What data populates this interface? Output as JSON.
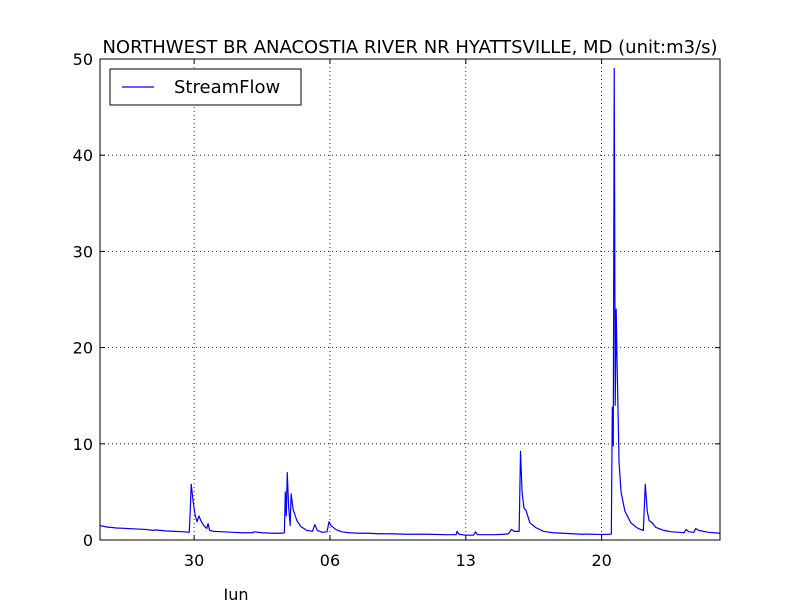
{
  "chart_data": {
    "type": "line",
    "title": "NORTHWEST BR ANACOSTIA RIVER NR HYATTSVILLE, MD (unit:m3/s)",
    "xlabel": "",
    "ylabel": "",
    "x_month_label": "Jun",
    "x_ticks": [
      {
        "day": 30,
        "label": "30"
      },
      {
        "day": 37,
        "label": "06"
      },
      {
        "day": 44,
        "label": "13"
      },
      {
        "day": 51,
        "label": "20"
      }
    ],
    "xlim": [
      25.15,
      57.1
    ],
    "ylim": [
      0,
      50
    ],
    "y_ticks": [
      0,
      10,
      20,
      30,
      40,
      50
    ],
    "grid": true,
    "legend": {
      "position": "top-left",
      "entries": [
        "StreamFlow"
      ]
    },
    "series": [
      {
        "name": "StreamFlow",
        "color": "#0000ff",
        "points": [
          [
            25.15,
            1.5
          ],
          [
            25.5,
            1.35
          ],
          [
            26.0,
            1.25
          ],
          [
            26.5,
            1.2
          ],
          [
            27.0,
            1.15
          ],
          [
            27.5,
            1.1
          ],
          [
            27.9,
            1.0
          ],
          [
            28.0,
            1.05
          ],
          [
            28.5,
            0.95
          ],
          [
            29.0,
            0.9
          ],
          [
            29.5,
            0.85
          ],
          [
            29.75,
            0.8
          ],
          [
            29.8,
            3.0
          ],
          [
            29.85,
            5.8
          ],
          [
            29.95,
            4.0
          ],
          [
            30.05,
            2.6
          ],
          [
            30.15,
            1.9
          ],
          [
            30.25,
            2.5
          ],
          [
            30.35,
            2.0
          ],
          [
            30.5,
            1.5
          ],
          [
            30.65,
            1.2
          ],
          [
            30.72,
            1.7
          ],
          [
            30.8,
            1.0
          ],
          [
            31.0,
            0.9
          ],
          [
            31.5,
            0.85
          ],
          [
            32.0,
            0.8
          ],
          [
            32.5,
            0.75
          ],
          [
            33.0,
            0.75
          ],
          [
            33.1,
            0.85
          ],
          [
            33.5,
            0.75
          ],
          [
            34.0,
            0.7
          ],
          [
            34.5,
            0.7
          ],
          [
            34.65,
            0.75
          ],
          [
            34.7,
            5.0
          ],
          [
            34.75,
            2.5
          ],
          [
            34.8,
            7.0
          ],
          [
            34.87,
            3.5
          ],
          [
            34.95,
            1.5
          ],
          [
            35.0,
            4.8
          ],
          [
            35.1,
            3.2
          ],
          [
            35.3,
            2.0
          ],
          [
            35.5,
            1.4
          ],
          [
            35.8,
            1.0
          ],
          [
            36.1,
            0.9
          ],
          [
            36.22,
            1.6
          ],
          [
            36.35,
            1.0
          ],
          [
            36.6,
            0.8
          ],
          [
            36.85,
            0.85
          ],
          [
            36.95,
            1.9
          ],
          [
            37.05,
            1.5
          ],
          [
            37.3,
            1.1
          ],
          [
            37.6,
            0.85
          ],
          [
            38.0,
            0.75
          ],
          [
            38.5,
            0.7
          ],
          [
            39.0,
            0.7
          ],
          [
            39.5,
            0.65
          ],
          [
            40.0,
            0.65
          ],
          [
            41.0,
            0.6
          ],
          [
            42.0,
            0.6
          ],
          [
            43.0,
            0.55
          ],
          [
            43.5,
            0.55
          ],
          [
            43.55,
            0.9
          ],
          [
            43.65,
            0.6
          ],
          [
            44.0,
            0.5
          ],
          [
            44.4,
            0.5
          ],
          [
            44.5,
            0.85
          ],
          [
            44.6,
            0.55
          ],
          [
            45.0,
            0.55
          ],
          [
            45.5,
            0.55
          ],
          [
            46.0,
            0.6
          ],
          [
            46.2,
            0.65
          ],
          [
            46.35,
            1.1
          ],
          [
            46.5,
            0.9
          ],
          [
            46.75,
            0.9
          ],
          [
            46.82,
            9.2
          ],
          [
            46.9,
            5.0
          ],
          [
            47.0,
            3.3
          ],
          [
            47.1,
            3.1
          ],
          [
            47.3,
            1.8
          ],
          [
            47.6,
            1.3
          ],
          [
            48.0,
            0.9
          ],
          [
            48.5,
            0.75
          ],
          [
            49.0,
            0.7
          ],
          [
            49.5,
            0.65
          ],
          [
            50.0,
            0.6
          ],
          [
            50.2,
            0.62
          ],
          [
            50.5,
            0.6
          ],
          [
            51.0,
            0.58
          ],
          [
            51.4,
            0.6
          ],
          [
            51.5,
            0.62
          ],
          [
            51.55,
            13.8
          ],
          [
            51.6,
            9.8
          ],
          [
            51.65,
            49.0
          ],
          [
            51.7,
            14.0
          ],
          [
            51.75,
            24.0
          ],
          [
            51.8,
            18.0
          ],
          [
            51.9,
            8.0
          ],
          [
            52.0,
            5.0
          ],
          [
            52.2,
            3.0
          ],
          [
            52.5,
            1.8
          ],
          [
            52.8,
            1.3
          ],
          [
            53.0,
            1.1
          ],
          [
            53.15,
            1.0
          ],
          [
            53.25,
            5.8
          ],
          [
            53.35,
            3.0
          ],
          [
            53.45,
            2.0
          ],
          [
            53.6,
            1.8
          ],
          [
            53.8,
            1.3
          ],
          [
            54.2,
            1.0
          ],
          [
            54.6,
            0.85
          ],
          [
            55.0,
            0.8
          ],
          [
            55.25,
            0.75
          ],
          [
            55.35,
            1.1
          ],
          [
            55.5,
            0.85
          ],
          [
            55.75,
            0.8
          ],
          [
            55.85,
            1.2
          ],
          [
            56.0,
            1.0
          ],
          [
            56.5,
            0.8
          ],
          [
            57.1,
            0.7
          ]
        ]
      }
    ]
  }
}
